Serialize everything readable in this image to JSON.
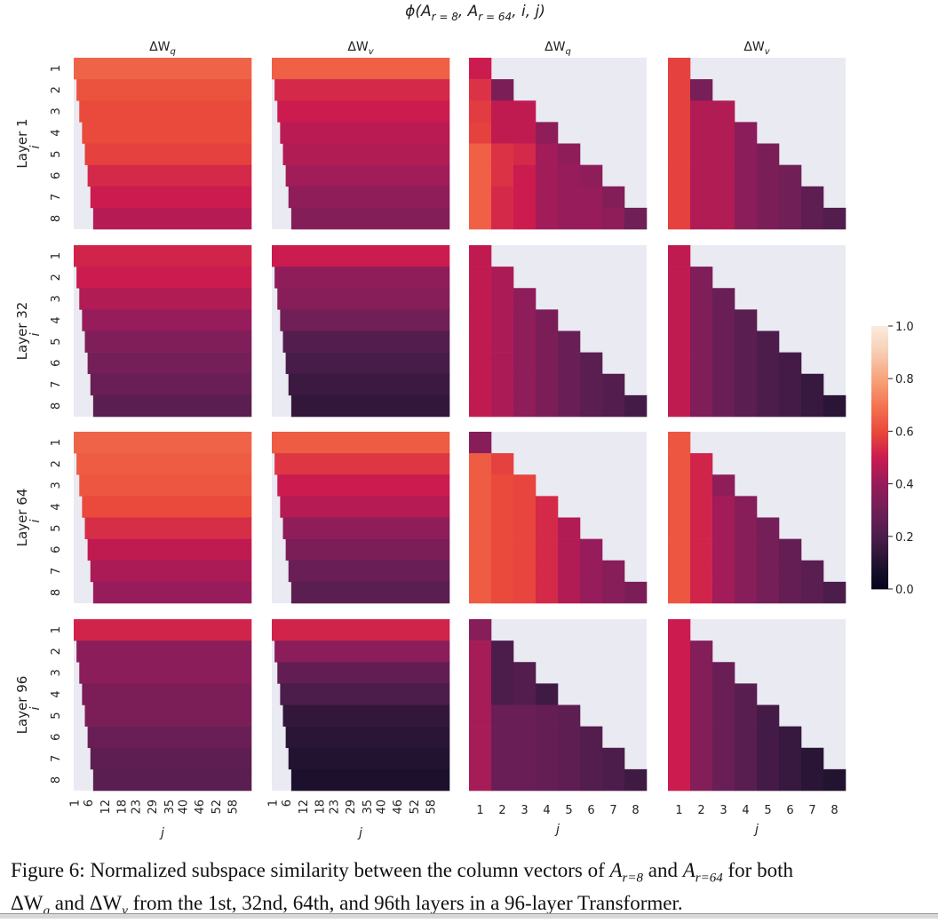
{
  "chart_data": {
    "type": "heatmap",
    "title": {
      "prefix": "ϕ(A",
      "sub1": "r = 8",
      "mid": ", A",
      "sub2": "r = 64",
      "suffix": ", i, j)"
    },
    "colormap": "rocket",
    "mask_color": "#EAEAF2",
    "colorbar": {
      "range": [
        0,
        1
      ],
      "ticks": [
        "0.0",
        "0.2",
        "0.4",
        "0.6",
        "0.8",
        "1.0"
      ]
    },
    "column_titles": [
      {
        "base": "ΔW",
        "sub": "q"
      },
      {
        "base": "ΔW",
        "sub": "v"
      },
      {
        "base": "ΔW",
        "sub": "q"
      },
      {
        "base": "ΔW",
        "sub": "v"
      }
    ],
    "row_titles": [
      "Layer 1",
      "Layer 32",
      "Layer 64",
      "Layer 96"
    ],
    "ylabel": "i",
    "xlabel": "j",
    "yticks": [
      "1",
      "2",
      "3",
      "4",
      "5",
      "6",
      "7",
      "8"
    ],
    "xticks_wide": [
      "1",
      "6",
      "12",
      "18",
      "23",
      "29",
      "35",
      "40",
      "46",
      "52",
      "58"
    ],
    "xticks_narrow": [
      "1",
      "2",
      "3",
      "4",
      "5",
      "6",
      "7",
      "8"
    ],
    "wide_panels_note": "j = 1..64, cells with j < i masked; values nearly constant along each row",
    "wide_panels": [
      {
        "layer": "Layer 1",
        "matrix": "ΔWq",
        "row_values": [
          0.66,
          0.62,
          0.6,
          0.6,
          0.58,
          0.53,
          0.5,
          0.46
        ]
      },
      {
        "layer": "Layer 1",
        "matrix": "ΔWv",
        "row_values": [
          0.65,
          0.53,
          0.5,
          0.47,
          0.45,
          0.42,
          0.38,
          0.35
        ]
      },
      {
        "layer": "Layer 32",
        "matrix": "ΔWq",
        "row_values": [
          0.52,
          0.5,
          0.45,
          0.4,
          0.34,
          0.31,
          0.28,
          0.24
        ]
      },
      {
        "layer": "Layer 32",
        "matrix": "ΔWv",
        "row_values": [
          0.5,
          0.38,
          0.36,
          0.3,
          0.22,
          0.19,
          0.16,
          0.14
        ]
      },
      {
        "layer": "Layer 64",
        "matrix": "ΔWq",
        "row_values": [
          0.66,
          0.64,
          0.63,
          0.6,
          0.54,
          0.48,
          0.44,
          0.4
        ]
      },
      {
        "layer": "Layer 64",
        "matrix": "ΔWv",
        "row_values": [
          0.64,
          0.56,
          0.5,
          0.46,
          0.38,
          0.33,
          0.28,
          0.24
        ]
      },
      {
        "layer": "Layer 96",
        "matrix": "ΔWq",
        "row_values": [
          0.52,
          0.37,
          0.37,
          0.33,
          0.33,
          0.28,
          0.25,
          0.24
        ]
      },
      {
        "layer": "Layer 96",
        "matrix": "ΔWv",
        "row_values": [
          0.52,
          0.37,
          0.26,
          0.2,
          0.14,
          0.12,
          0.1,
          0.08
        ]
      }
    ],
    "square_panels_note": "j = 1..8, cells with j > i masked; rows list values for j = 1..i",
    "square_panels": [
      {
        "layer": "Layer 1",
        "matrix": "ΔWq",
        "rows": [
          [
            0.5
          ],
          [
            0.55,
            0.33
          ],
          [
            0.57,
            0.48,
            0.48
          ],
          [
            0.58,
            0.48,
            0.48,
            0.38
          ],
          [
            0.65,
            0.55,
            0.53,
            0.42,
            0.38
          ],
          [
            0.65,
            0.55,
            0.5,
            0.42,
            0.4,
            0.38
          ],
          [
            0.65,
            0.53,
            0.5,
            0.42,
            0.4,
            0.4,
            0.35
          ],
          [
            0.65,
            0.53,
            0.5,
            0.42,
            0.4,
            0.4,
            0.38,
            0.3
          ]
        ]
      },
      {
        "layer": "Layer 1",
        "matrix": "ΔWv",
        "rows": [
          [
            0.58
          ],
          [
            0.58,
            0.32
          ],
          [
            0.58,
            0.45,
            0.45
          ],
          [
            0.58,
            0.45,
            0.45,
            0.37
          ],
          [
            0.58,
            0.45,
            0.45,
            0.37,
            0.33
          ],
          [
            0.58,
            0.45,
            0.45,
            0.37,
            0.33,
            0.3
          ],
          [
            0.58,
            0.45,
            0.45,
            0.37,
            0.33,
            0.3,
            0.25
          ],
          [
            0.58,
            0.45,
            0.45,
            0.37,
            0.33,
            0.3,
            0.25,
            0.22
          ]
        ]
      },
      {
        "layer": "Layer 32",
        "matrix": "ΔWq",
        "rows": [
          [
            0.48
          ],
          [
            0.48,
            0.44
          ],
          [
            0.48,
            0.44,
            0.38
          ],
          [
            0.48,
            0.44,
            0.38,
            0.33
          ],
          [
            0.48,
            0.44,
            0.38,
            0.33,
            0.28
          ],
          [
            0.48,
            0.44,
            0.38,
            0.33,
            0.28,
            0.24
          ],
          [
            0.48,
            0.44,
            0.38,
            0.33,
            0.28,
            0.24,
            0.22
          ],
          [
            0.48,
            0.44,
            0.38,
            0.33,
            0.28,
            0.24,
            0.22,
            0.18
          ]
        ]
      },
      {
        "layer": "Layer 32",
        "matrix": "ΔWv",
        "rows": [
          [
            0.48
          ],
          [
            0.48,
            0.34
          ],
          [
            0.48,
            0.34,
            0.28
          ],
          [
            0.48,
            0.34,
            0.28,
            0.24
          ],
          [
            0.48,
            0.34,
            0.28,
            0.24,
            0.2
          ],
          [
            0.48,
            0.34,
            0.28,
            0.24,
            0.2,
            0.18
          ],
          [
            0.48,
            0.34,
            0.28,
            0.24,
            0.2,
            0.18,
            0.15
          ],
          [
            0.48,
            0.34,
            0.28,
            0.24,
            0.2,
            0.18,
            0.15,
            0.12
          ]
        ]
      },
      {
        "layer": "Layer 64",
        "matrix": "ΔWq",
        "rows": [
          [
            0.36
          ],
          [
            0.64,
            0.58
          ],
          [
            0.64,
            0.6,
            0.59
          ],
          [
            0.64,
            0.6,
            0.59,
            0.53
          ],
          [
            0.64,
            0.6,
            0.59,
            0.53,
            0.45
          ],
          [
            0.64,
            0.6,
            0.59,
            0.53,
            0.45,
            0.4
          ],
          [
            0.64,
            0.6,
            0.59,
            0.53,
            0.45,
            0.4,
            0.36
          ],
          [
            0.64,
            0.6,
            0.59,
            0.53,
            0.45,
            0.4,
            0.36,
            0.33
          ]
        ]
      },
      {
        "layer": "Layer 64",
        "matrix": "ΔWv",
        "rows": [
          [
            0.63
          ],
          [
            0.63,
            0.52
          ],
          [
            0.63,
            0.52,
            0.38
          ],
          [
            0.63,
            0.52,
            0.42,
            0.36
          ],
          [
            0.63,
            0.52,
            0.42,
            0.36,
            0.31
          ],
          [
            0.63,
            0.52,
            0.42,
            0.36,
            0.31,
            0.27
          ],
          [
            0.63,
            0.52,
            0.42,
            0.36,
            0.31,
            0.27,
            0.24
          ],
          [
            0.63,
            0.52,
            0.42,
            0.36,
            0.31,
            0.27,
            0.24,
            0.2
          ]
        ]
      },
      {
        "layer": "Layer 96",
        "matrix": "ΔWq",
        "rows": [
          [
            0.36
          ],
          [
            0.43,
            0.2
          ],
          [
            0.43,
            0.2,
            0.22
          ],
          [
            0.43,
            0.2,
            0.22,
            0.17
          ],
          [
            0.43,
            0.28,
            0.28,
            0.27,
            0.25
          ],
          [
            0.43,
            0.28,
            0.28,
            0.27,
            0.25,
            0.22
          ],
          [
            0.43,
            0.28,
            0.28,
            0.27,
            0.25,
            0.22,
            0.2
          ],
          [
            0.43,
            0.28,
            0.28,
            0.27,
            0.25,
            0.22,
            0.2,
            0.17
          ]
        ]
      },
      {
        "layer": "Layer 96",
        "matrix": "ΔWv",
        "rows": [
          [
            0.5
          ],
          [
            0.5,
            0.35
          ],
          [
            0.5,
            0.35,
            0.28
          ],
          [
            0.5,
            0.35,
            0.28,
            0.23
          ],
          [
            0.5,
            0.35,
            0.28,
            0.23,
            0.18
          ],
          [
            0.5,
            0.35,
            0.28,
            0.23,
            0.18,
            0.15
          ],
          [
            0.5,
            0.35,
            0.28,
            0.23,
            0.18,
            0.15,
            0.12
          ],
          [
            0.5,
            0.35,
            0.28,
            0.23,
            0.18,
            0.15,
            0.12,
            0.1
          ]
        ]
      }
    ]
  },
  "caption": {
    "p1": "Figure 6: Normalized subspace similarity between the column vectors of ",
    "a1": "A",
    "a1_sub": "r=8",
    "p2": " and ",
    "a2": "A",
    "a2_sub": "r=64",
    "p3": " for both",
    "dw": "ΔW",
    "q": "q",
    "p4": " and ",
    "v": "v",
    "p5": " from the 1st, 32nd, 64th, and 96th layers in a 96-layer Transformer."
  }
}
